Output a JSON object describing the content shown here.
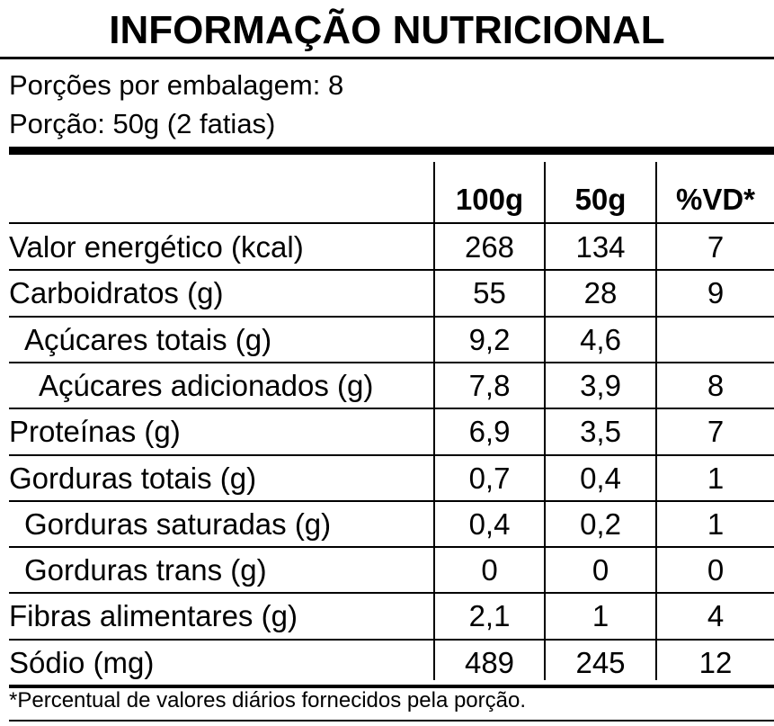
{
  "label": {
    "title": "INFORMAÇÃO NUTRICIONAL",
    "servings_per_package": "Porções por embalagem: 8",
    "serving_size": "Porção: 50g (2 fatias)",
    "columns": [
      "100g",
      "50g",
      "%VD*"
    ],
    "rows": [
      {
        "name": "Valor energético (kcal)",
        "v100": "268",
        "v50": "134",
        "vd": "7",
        "indent": 0
      },
      {
        "name": "Carboidratos (g)",
        "v100": "55",
        "v50": "28",
        "vd": "9",
        "indent": 0
      },
      {
        "name": "Açúcares totais (g)",
        "v100": "9,2",
        "v50": "4,6",
        "vd": "",
        "indent": 1
      },
      {
        "name": "Açúcares adicionados (g)",
        "v100": "7,8",
        "v50": "3,9",
        "vd": "8",
        "indent": 2
      },
      {
        "name": "Proteínas (g)",
        "v100": "6,9",
        "v50": "3,5",
        "vd": "7",
        "indent": 0
      },
      {
        "name": "Gorduras totais (g)",
        "v100": "0,7",
        "v50": "0,4",
        "vd": "1",
        "indent": 0
      },
      {
        "name": "Gorduras saturadas (g)",
        "v100": "0,4",
        "v50": "0,2",
        "vd": "1",
        "indent": 1
      },
      {
        "name": "Gorduras trans (g)",
        "v100": "0",
        "v50": "0",
        "vd": "0",
        "indent": 1
      },
      {
        "name": "Fibras alimentares (g)",
        "v100": "2,1",
        "v50": "1",
        "vd": "4",
        "indent": 0
      },
      {
        "name": "Sódio (mg)",
        "v100": "489",
        "v50": "245",
        "vd": "12",
        "indent": 0
      }
    ],
    "footnote": "*Percentual de valores diários fornecidos pela porção."
  }
}
